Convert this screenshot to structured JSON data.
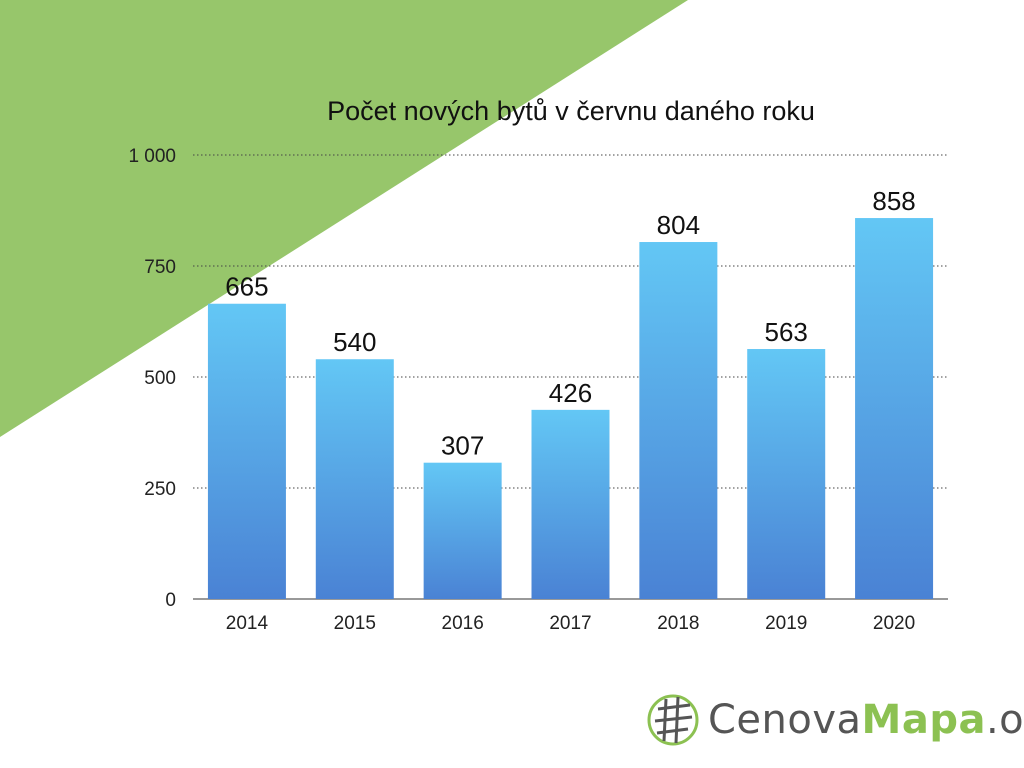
{
  "chart_data": {
    "type": "bar",
    "title": "Počet nových bytů v červnu daného roku",
    "categories": [
      "2014",
      "2015",
      "2016",
      "2017",
      "2018",
      "2019",
      "2020"
    ],
    "values": [
      665,
      540,
      307,
      426,
      804,
      563,
      858
    ],
    "value_labels": [
      "665",
      "540",
      "307",
      "426",
      "804",
      "563",
      "858"
    ],
    "ylim": [
      0,
      1000
    ],
    "yticks": [
      0,
      250,
      500,
      750,
      1000
    ],
    "ytick_labels": [
      "0",
      "250",
      "500",
      "750",
      "1 000"
    ],
    "grid": "horizontal dotted",
    "legend": "none",
    "bar_color_top": "#63c7f5",
    "bar_color_bottom": "#4a82d4"
  },
  "decoration": {
    "background_triangle_color": "#97c66b"
  },
  "logo": {
    "part1": "Cenova",
    "part2": "Mapa",
    "part3": ".org",
    "icon": "globe-grid-icon"
  }
}
